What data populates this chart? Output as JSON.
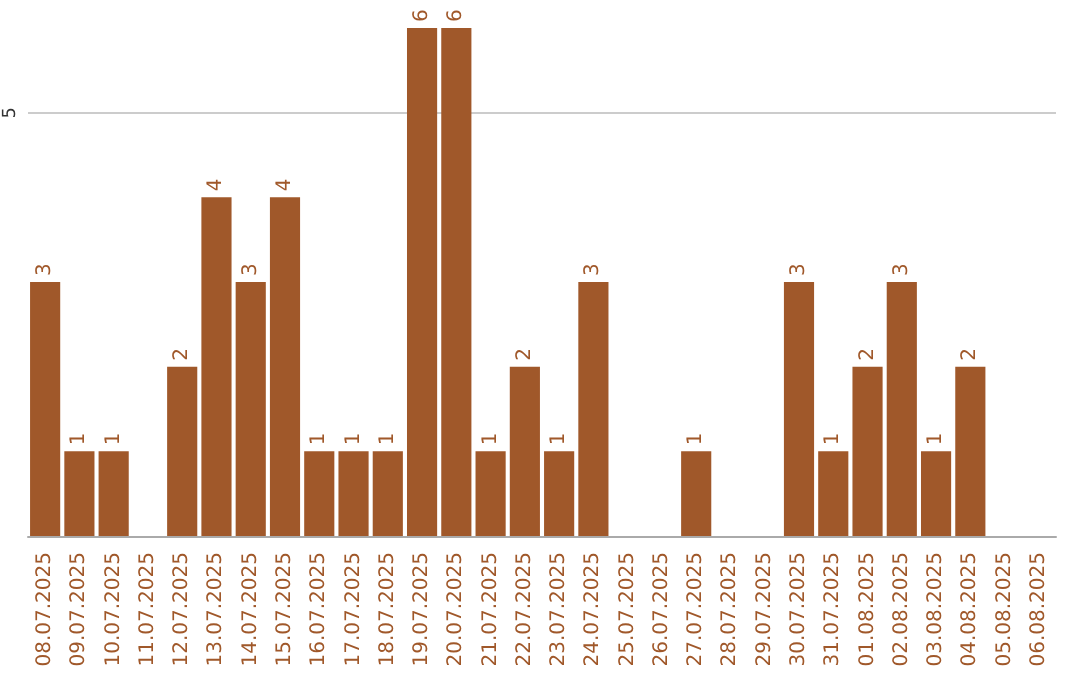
{
  "chart_data": {
    "type": "bar",
    "categories": [
      "08.07.2025",
      "09.07.2025",
      "10.07.2025",
      "11.07.2025",
      "12.07.2025",
      "13.07.2025",
      "14.07.2025",
      "15.07.2025",
      "16.07.2025",
      "17.07.2025",
      "18.07.2025",
      "19.07.2025",
      "20.07.2025",
      "21.07.2025",
      "22.07.2025",
      "23.07.2025",
      "24.07.2025",
      "25.07.2025",
      "26.07.2025",
      "27.07.2025",
      "28.07.2025",
      "29.07.2025",
      "30.07.2025",
      "31.07.2025",
      "01.08.2025",
      "02.08.2025",
      "03.08.2025",
      "04.08.2025",
      "05.08.2025",
      "06.08.2025"
    ],
    "values": [
      3,
      1,
      1,
      0,
      2,
      4,
      3,
      4,
      1,
      1,
      1,
      6,
      6,
      1,
      2,
      1,
      3,
      0,
      0,
      1,
      0,
      0,
      3,
      1,
      2,
      3,
      1,
      2,
      0,
      0
    ],
    "value_labels": [
      "3",
      "1",
      "1",
      null,
      "2",
      "4",
      "3",
      "4",
      "1",
      "1",
      "1",
      "6",
      "6",
      "1",
      "2",
      "1",
      "3",
      null,
      null,
      "1",
      null,
      null,
      "3",
      "1",
      "2",
      "3",
      "1",
      "2",
      null,
      null
    ],
    "color": "#a0582a",
    "ylim": [
      0,
      6
    ],
    "yticks": [
      5
    ],
    "grid": "y"
  }
}
